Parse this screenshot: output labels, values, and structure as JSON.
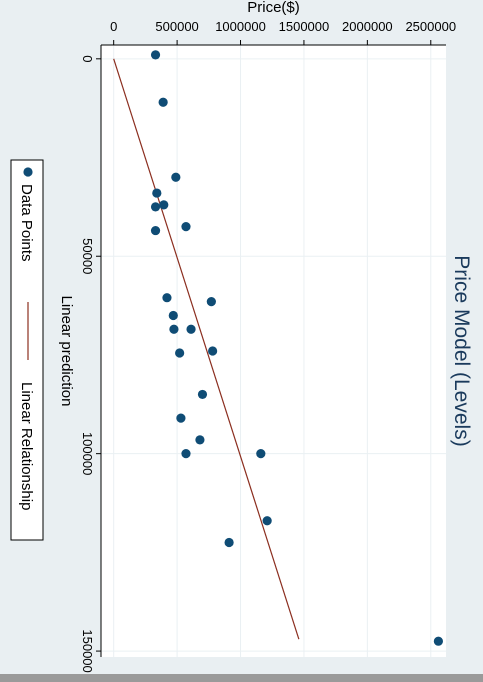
{
  "chart_data": {
    "type": "scatter",
    "title": "Price Model (Levels)",
    "xlabel": "Price($)",
    "ylabel": "Linear prediction",
    "x_ticks": [
      "0",
      "500000",
      "1000000",
      "1500000",
      "2000000",
      "2500000"
    ],
    "y_ticks": [
      "0",
      "50000",
      "100000",
      "150000"
    ],
    "xlim": [
      -100000,
      2620000
    ],
    "ylim": [
      -3500,
      151500
    ],
    "grid": true,
    "legend_position": "left",
    "series": [
      {
        "name": "Data Points",
        "kind": "scatter",
        "color": "#0f4c75",
        "points": [
          {
            "x": 330000,
            "y": -1000
          },
          {
            "x": 390000,
            "y": 11000
          },
          {
            "x": 490000,
            "y": 30000
          },
          {
            "x": 340000,
            "y": 34000
          },
          {
            "x": 330000,
            "y": 37500
          },
          {
            "x": 395000,
            "y": 37000
          },
          {
            "x": 570000,
            "y": 42500
          },
          {
            "x": 330000,
            "y": 43500
          },
          {
            "x": 420000,
            "y": 60500
          },
          {
            "x": 770000,
            "y": 61500
          },
          {
            "x": 470000,
            "y": 65000
          },
          {
            "x": 475000,
            "y": 68500
          },
          {
            "x": 610000,
            "y": 68500
          },
          {
            "x": 520000,
            "y": 74500
          },
          {
            "x": 780000,
            "y": 74000
          },
          {
            "x": 700000,
            "y": 85000
          },
          {
            "x": 530000,
            "y": 91000
          },
          {
            "x": 680000,
            "y": 96500
          },
          {
            "x": 570000,
            "y": 100000
          },
          {
            "x": 1160000,
            "y": 100000
          },
          {
            "x": 1210000,
            "y": 117000
          },
          {
            "x": 910000,
            "y": 122500
          },
          {
            "x": 2560000,
            "y": 147500
          }
        ]
      },
      {
        "name": "Linear Relationship",
        "kind": "line",
        "color": "#8b2e1f",
        "points": [
          {
            "x": 0,
            "y": 0
          },
          {
            "x": 1460000,
            "y": 147000
          }
        ]
      }
    ]
  }
}
